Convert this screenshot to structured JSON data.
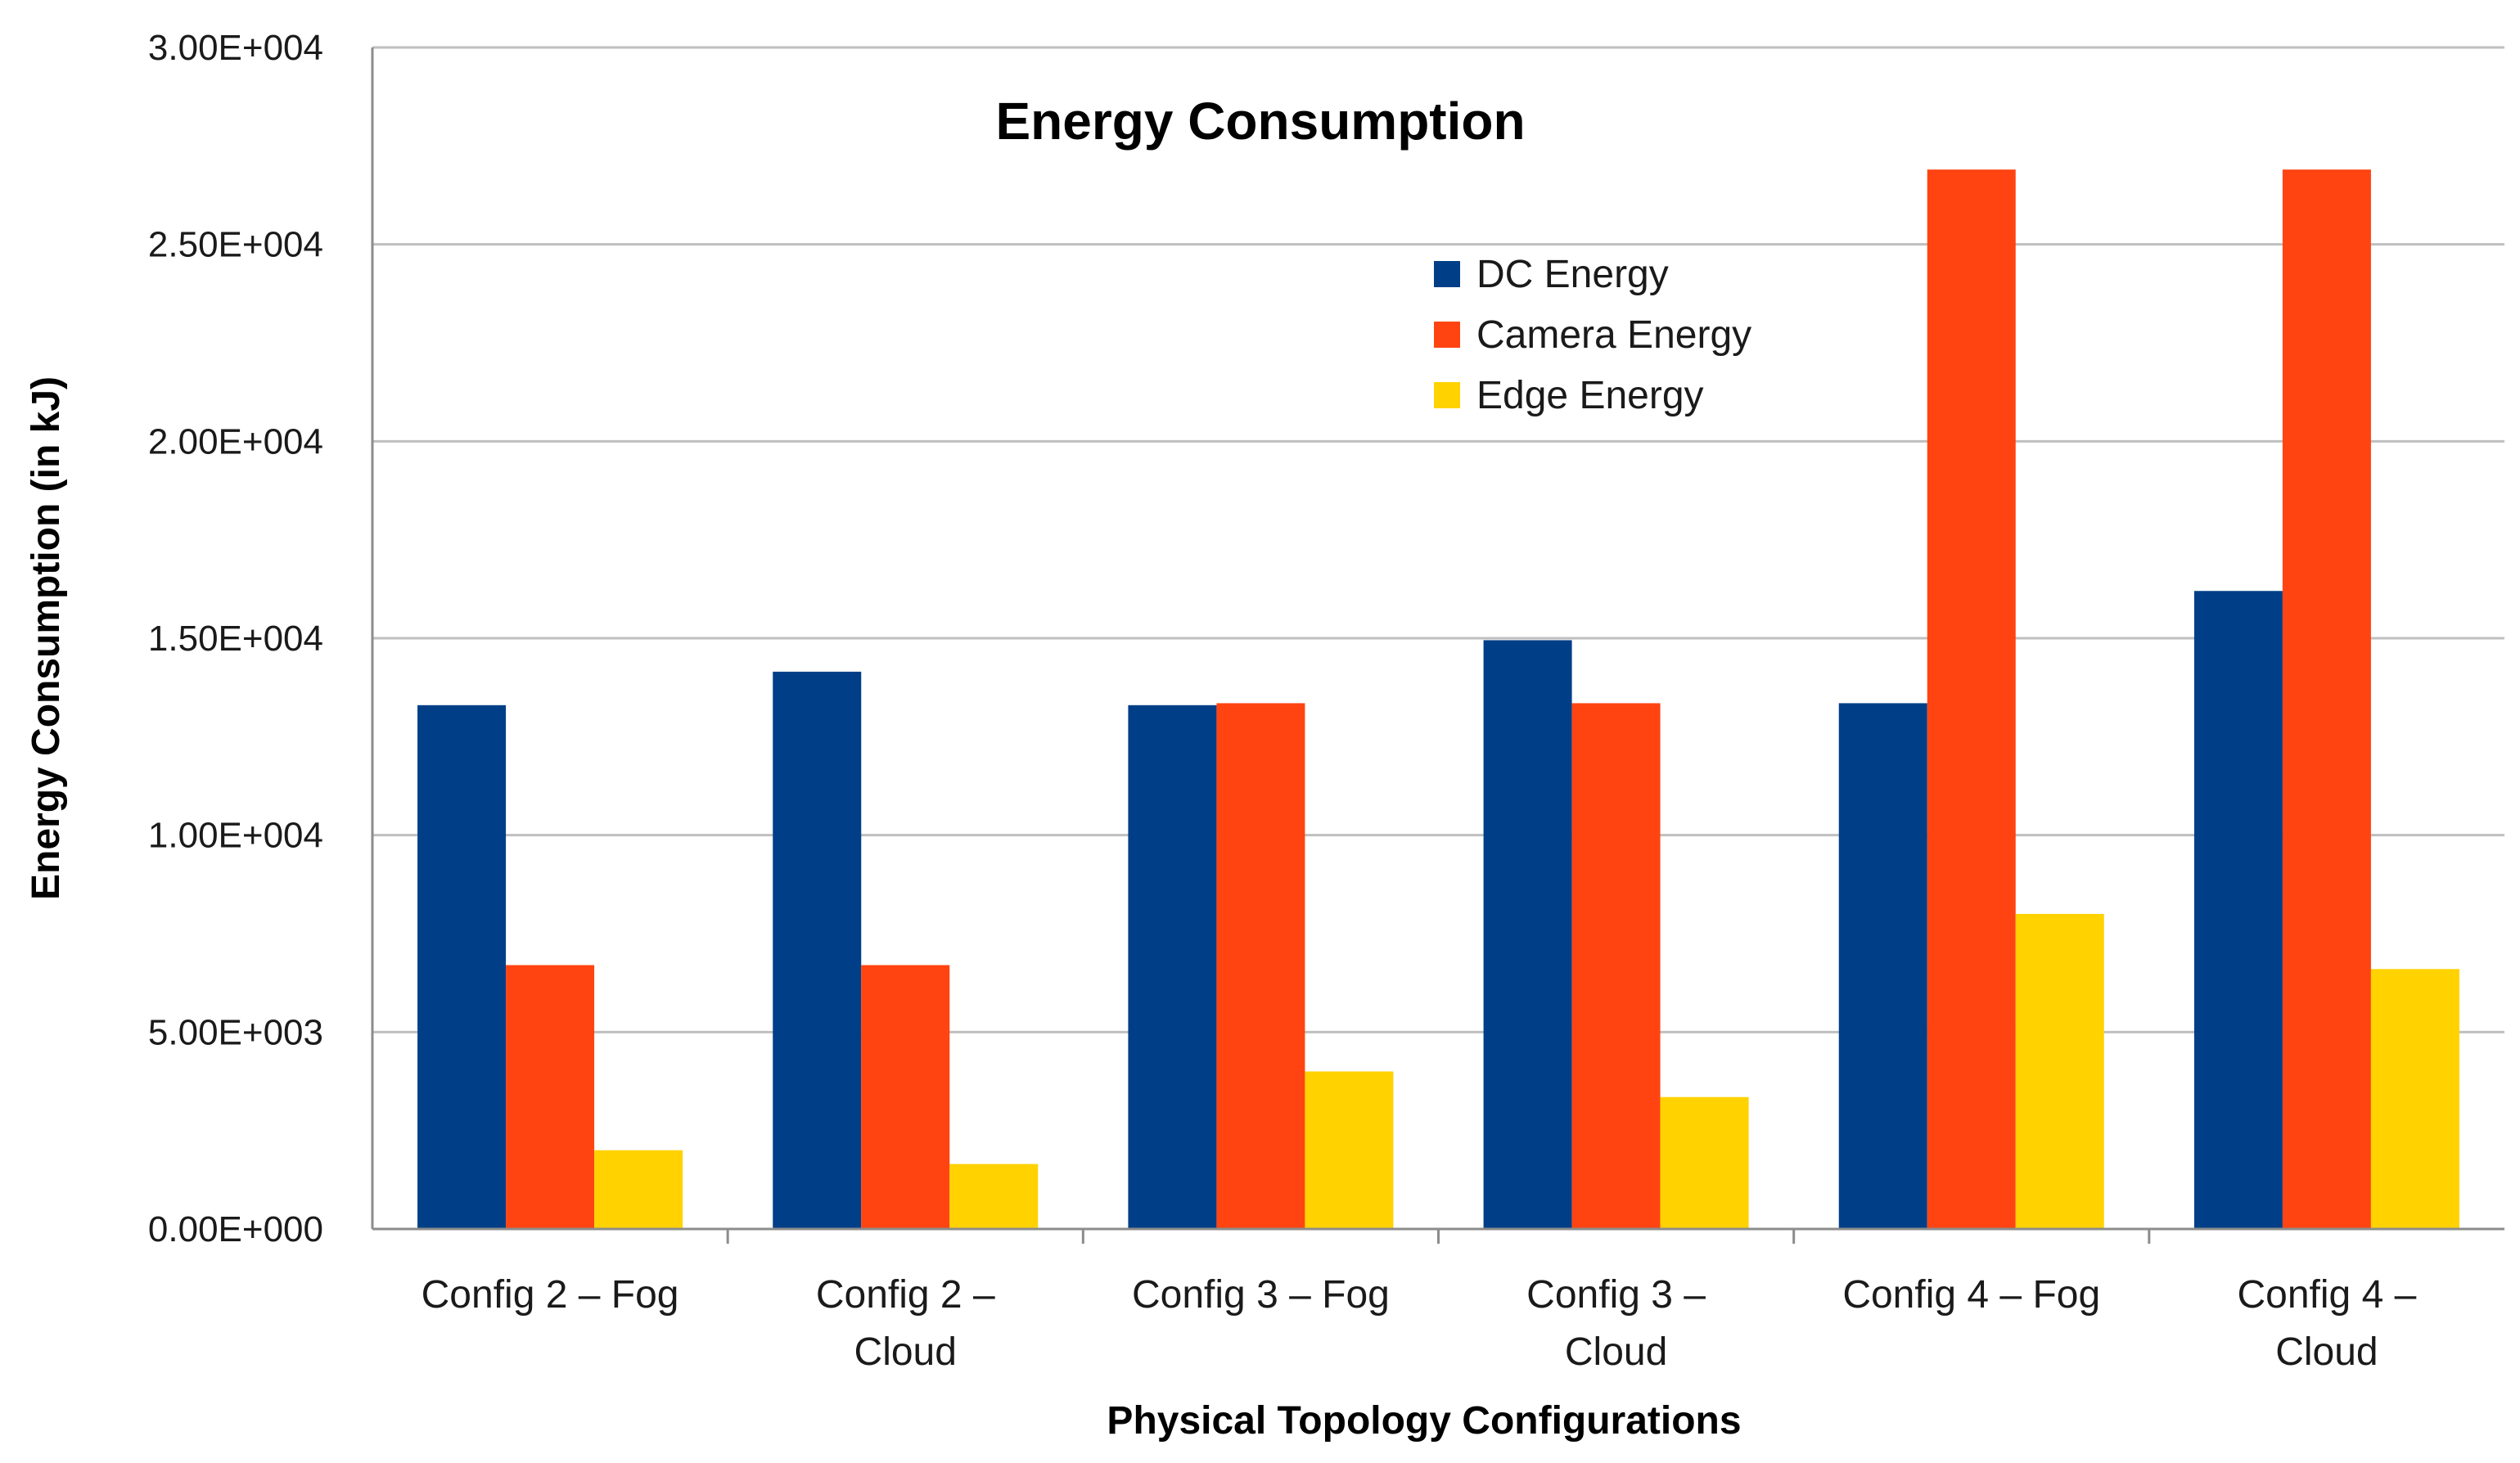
{
  "chart_data": {
    "type": "bar",
    "title": "Energy Consumption",
    "xlabel": "Physical Topology Configurations",
    "ylabel": "Energy Consumption (in kJ)",
    "ylim": [
      0,
      30000
    ],
    "yticks": [
      0,
      5000,
      10000,
      15000,
      20000,
      25000,
      30000
    ],
    "ytick_labels": [
      "0.00E+000",
      "5.00E+003",
      "1.00E+004",
      "1.50E+004",
      "2.00E+004",
      "2.50E+004",
      "3.00E+004"
    ],
    "categories": [
      [
        "Config 2 – Fog"
      ],
      [
        "Config 2 –",
        "Cloud"
      ],
      [
        "Config 3 – Fog"
      ],
      [
        "Config 3 –",
        "Cloud"
      ],
      [
        "Config 4 – Fog"
      ],
      [
        "Config 4 –",
        "Cloud"
      ]
    ],
    "series": [
      {
        "name": "DC Energy",
        "color": "#003f87",
        "values": [
          13300,
          14150,
          13300,
          14950,
          13350,
          16200
        ]
      },
      {
        "name": "Camera Energy",
        "color": "#ff4411",
        "values": [
          6700,
          6700,
          13350,
          13350,
          26900,
          26900
        ]
      },
      {
        "name": "Edge Energy",
        "color": "#ffd200",
        "values": [
          2000,
          1650,
          4000,
          3350,
          8000,
          6600
        ]
      }
    ],
    "grid": true,
    "legend": "top-right"
  }
}
